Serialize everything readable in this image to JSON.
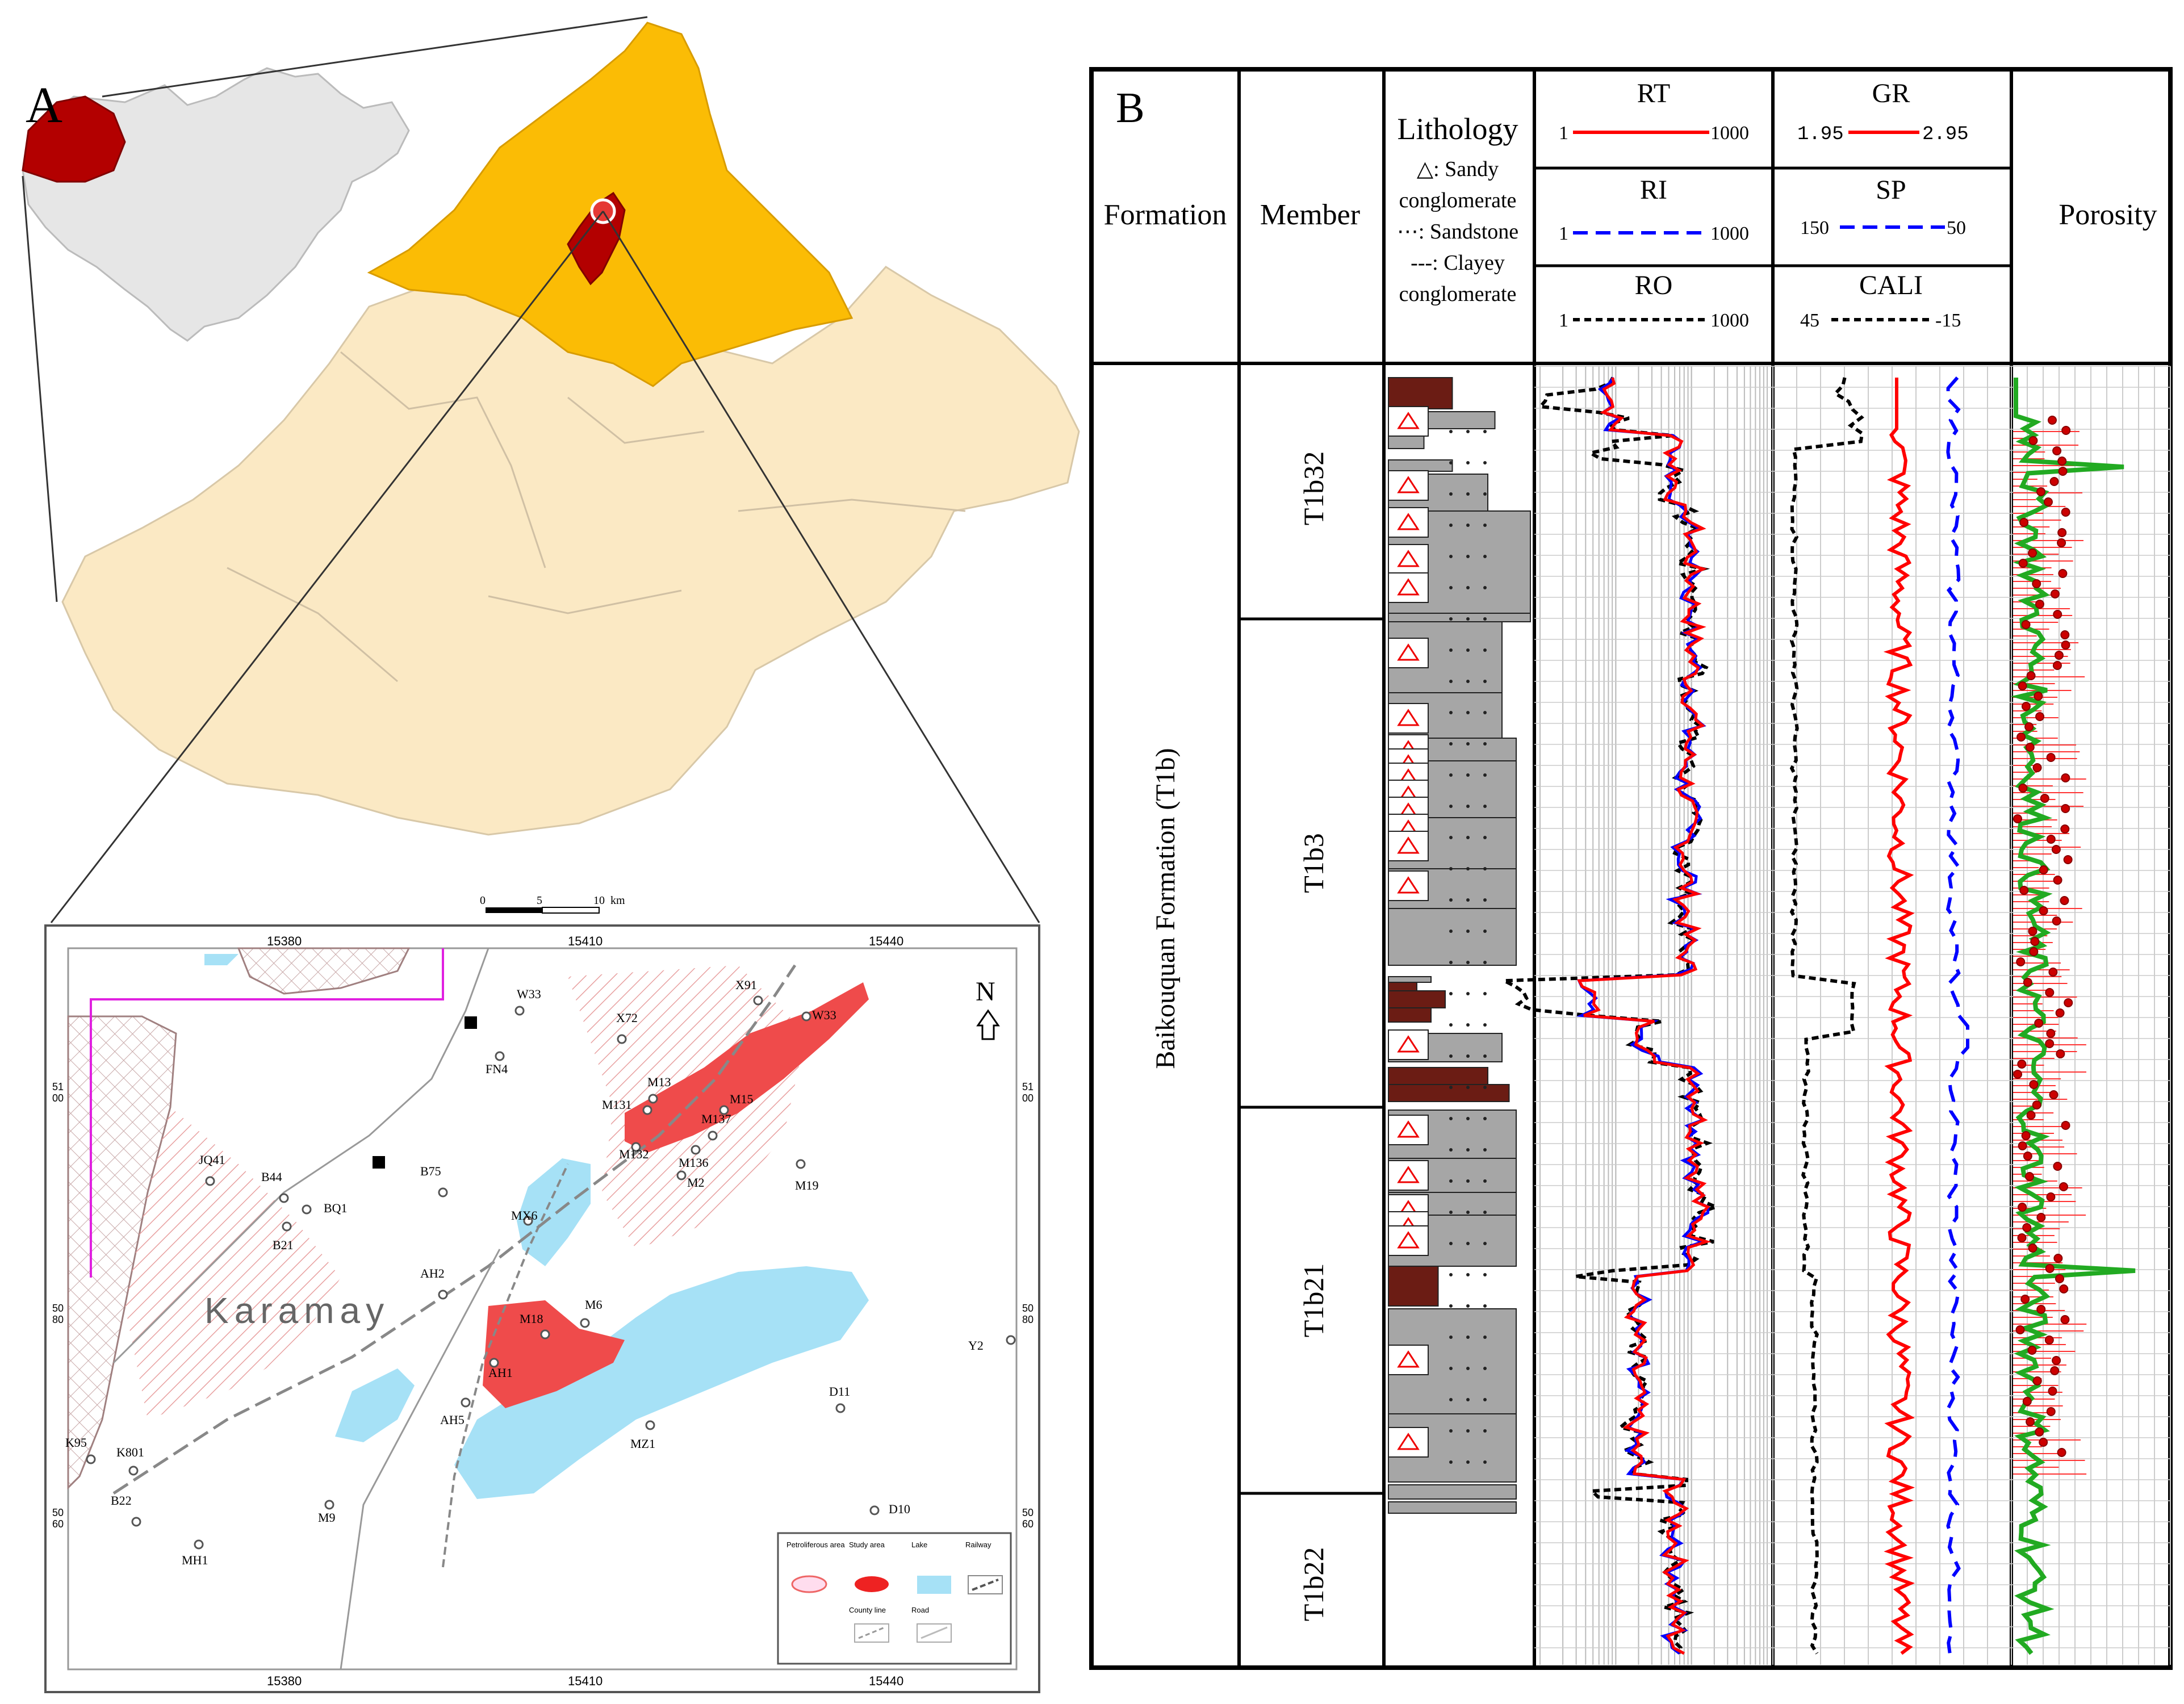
{
  "panel_a": {
    "label": "A",
    "region_colors": {
      "xinjiang_highlight": "#b30000",
      "china_fill": "#e6e6e6",
      "north_region": "#fbbc05",
      "south_region": "#fbe9c4",
      "study": "#b30000"
    },
    "scale_bar": {
      "labels": [
        "0",
        "5",
        "10",
        "km"
      ]
    },
    "inset": {
      "top_ticks": [
        "15380",
        "15410",
        "15440"
      ],
      "bottom_ticks": [
        "15380",
        "15410",
        "15440"
      ],
      "left_ticks": [
        [
          "51",
          "00"
        ],
        [
          "50",
          "80"
        ],
        [
          "50",
          "60"
        ]
      ],
      "right_ticks": [
        [
          "51",
          "00"
        ],
        [
          "50",
          "80"
        ],
        [
          "50",
          "60"
        ]
      ],
      "city": "Karamay",
      "north": "N",
      "wells": [
        "W33",
        "FN4",
        "X72",
        "X91",
        "W33",
        "M13",
        "M15",
        "M131",
        "M137",
        "M132",
        "M136",
        "JQ41",
        "B44",
        "BQ1",
        "B75",
        "M2",
        "M19",
        "B21",
        "MX6",
        "AH2",
        "M18",
        "M6",
        "Y2",
        "AH1",
        "D11",
        "AH5",
        "MZ1",
        "K95",
        "K801",
        "B22",
        "M9",
        "D10",
        "MH1"
      ],
      "legend": {
        "petroliferous": "Petroliferous area",
        "study": "Study area",
        "lake": "Lake",
        "railway": "Railway",
        "county": "County line",
        "road": "Road"
      }
    }
  },
  "panel_b": {
    "label": "B",
    "headers": {
      "formation": "Formation",
      "member": "Member",
      "lithology_title": "Lithology",
      "lithology_lines": [
        "△: Sandy",
        "conglomerate",
        "⋯: Sandstone",
        "---: Clayey",
        "conglomerate"
      ],
      "porosity": "Porosity"
    },
    "tracks": {
      "rt": {
        "name": "RT",
        "min": "1",
        "max": "1000"
      },
      "ri": {
        "name": "RI",
        "min": "1",
        "max": "1000"
      },
      "ro": {
        "name": "RO",
        "min": "1",
        "max": "1000"
      },
      "gr": {
        "name": "GR",
        "min": "1.95",
        "max": "2.95"
      },
      "sp": {
        "name": "SP",
        "min": "150",
        "max": "50"
      },
      "cali": {
        "name": "CALI",
        "min": "45",
        "max": "-15"
      }
    },
    "formation_name": "Baikouquan Formation (T1b)",
    "members": [
      "T1b32",
      "T1b3",
      "T1b21",
      "T1b22"
    ],
    "colors": {
      "rt": "#ff0000",
      "ri": "#0000ff",
      "ro": "#000000",
      "porosity_green": "#22aa22",
      "porosity_dot": "#cc0000",
      "litho_gray": "#a6a6a6",
      "litho_brown": "#6b1c14"
    }
  }
}
